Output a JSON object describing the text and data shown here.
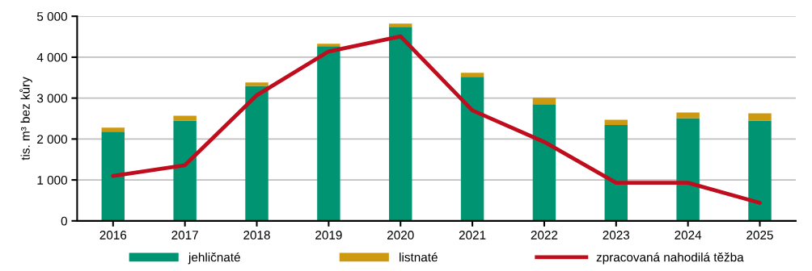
{
  "chart_data": {
    "type": "bar",
    "stacked": true,
    "ylabel": "tis. m³ bez kůry",
    "categories": [
      "2016",
      "2017",
      "2018",
      "2019",
      "2020",
      "2021",
      "2022",
      "2023",
      "2024",
      "2025"
    ],
    "series": [
      {
        "name": "jehličnaté",
        "color": "#009473",
        "values": [
          2180,
          2450,
          3300,
          4270,
          4740,
          3520,
          2850,
          2340,
          2510,
          2450
        ]
      },
      {
        "name": "listnaté",
        "color": "#cc9910",
        "values": [
          100,
          120,
          80,
          60,
          80,
          100,
          160,
          130,
          140,
          180
        ]
      },
      {
        "name": "zpracovaná nahodilá těžba",
        "type": "line",
        "color": "#c00d1e",
        "values": [
          1100,
          1360,
          3070,
          4140,
          4510,
          2700,
          1930,
          930,
          930,
          440
        ]
      }
    ],
    "ylim": [
      0,
      5000
    ],
    "yticks": [
      {
        "value": 0,
        "label": "0"
      },
      {
        "value": 1000,
        "label": "1 000"
      },
      {
        "value": 2000,
        "label": "2 000"
      },
      {
        "value": 3000,
        "label": "3 000"
      },
      {
        "value": 4000,
        "label": "4 000"
      },
      {
        "value": 5000,
        "label": "5 000"
      }
    ],
    "grid": "y",
    "legend": "bottom"
  }
}
